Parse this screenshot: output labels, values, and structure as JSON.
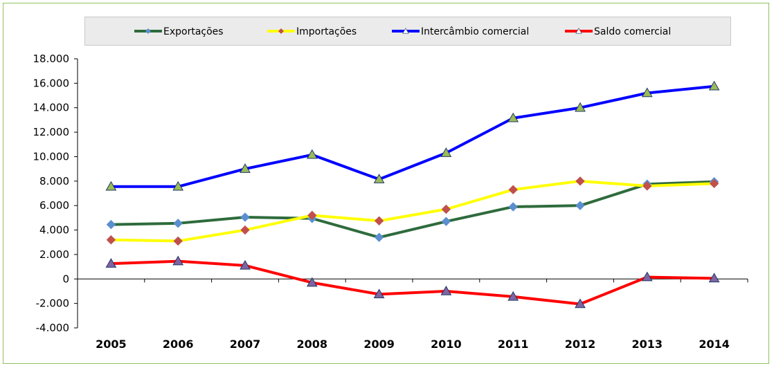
{
  "chart_data": {
    "type": "line",
    "title": "",
    "xlabel": "",
    "ylabel": "",
    "categories": [
      "2005",
      "2006",
      "2007",
      "2008",
      "2009",
      "2010",
      "2011",
      "2012",
      "2013",
      "2014"
    ],
    "ylim": [
      -4000,
      18000
    ],
    "yticks": [
      -4000,
      -2000,
      0,
      2000,
      4000,
      6000,
      8000,
      10000,
      12000,
      14000,
      16000,
      18000
    ],
    "ytick_labels": [
      "-4.000",
      "-2.000",
      "0",
      "2.000",
      "4.000",
      "6.000",
      "8.000",
      "10.000",
      "12.000",
      "14.000",
      "16.000",
      "18.000"
    ],
    "grid": false,
    "legend_position": "top",
    "series": [
      {
        "name": "Exportações",
        "color": "#2e6b3c",
        "marker": "diamond",
        "marker_color": "#5b8fd0",
        "values": [
          4450,
          4550,
          5050,
          4950,
          3400,
          4700,
          5900,
          6000,
          7750,
          7950
        ]
      },
      {
        "name": "Importações",
        "color": "#ffff00",
        "marker": "diamond",
        "marker_color": "#c0504d",
        "values": [
          3200,
          3100,
          4000,
          5200,
          4750,
          5700,
          7300,
          8000,
          7600,
          7800
        ]
      },
      {
        "name": "Intercâmbio comercial",
        "color": "#0000ff",
        "marker": "triangle",
        "marker_color": "#9bbb59",
        "values": [
          7550,
          7550,
          9000,
          10150,
          8150,
          10300,
          13150,
          14000,
          15200,
          15750
        ]
      },
      {
        "name": "Saldo comercial",
        "color": "#ff0000",
        "marker": "triangle",
        "marker_color": "#8064a2",
        "values": [
          1250,
          1450,
          1100,
          -300,
          -1250,
          -1000,
          -1450,
          -2050,
          150,
          50
        ]
      }
    ]
  }
}
